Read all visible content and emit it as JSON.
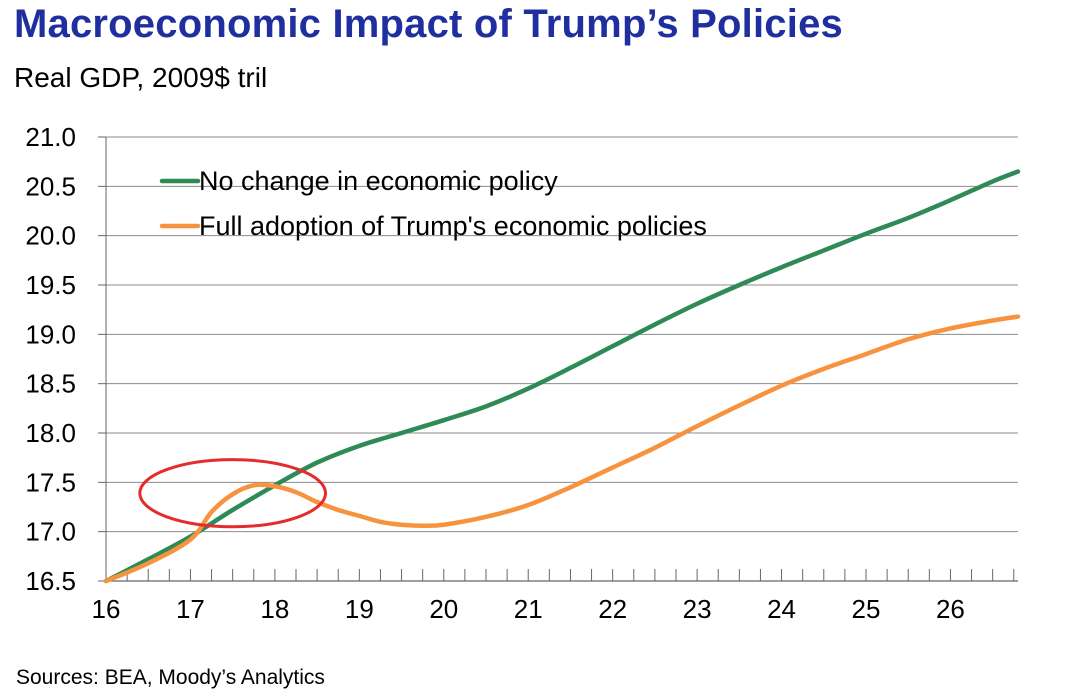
{
  "header": {
    "title": "Macroeconomic Impact of Trump’s Policies",
    "subtitle": "Real GDP, 2009$ tril"
  },
  "footer": {
    "source": "Sources: BEA, Moody’s Analytics"
  },
  "chart_data": {
    "type": "line",
    "title": "Macroeconomic Impact of Trump’s Policies",
    "subtitle": "Real GDP, 2009$ tril",
    "xlabel": "",
    "ylabel": "",
    "xlim": [
      16,
      26.8
    ],
    "ylim": [
      16.5,
      21.0
    ],
    "x_ticks": [
      16,
      17,
      18,
      19,
      20,
      21,
      22,
      23,
      24,
      25,
      26
    ],
    "y_ticks": [
      16.5,
      17.0,
      17.5,
      18.0,
      18.5,
      19.0,
      19.5,
      20.0,
      20.5,
      21.0
    ],
    "grid": "horizontal",
    "legend": "top-left",
    "series": [
      {
        "name": "No change in economic policy",
        "color": "#2e8b57",
        "x": [
          16,
          16.5,
          17,
          17.5,
          18,
          18.5,
          19,
          19.5,
          20,
          20.5,
          21,
          21.5,
          22,
          22.5,
          23,
          23.5,
          24,
          24.5,
          25,
          25.5,
          26,
          26.5,
          26.8
        ],
        "values": [
          16.5,
          16.72,
          16.95,
          17.22,
          17.47,
          17.7,
          17.87,
          18.0,
          18.13,
          18.27,
          18.45,
          18.66,
          18.88,
          19.1,
          19.31,
          19.5,
          19.68,
          19.85,
          20.02,
          20.18,
          20.36,
          20.55,
          20.65
        ]
      },
      {
        "name": "Full adoption of Trump's economic policies",
        "color": "#f7933e",
        "x": [
          16,
          16.5,
          17,
          17.25,
          17.5,
          17.75,
          18,
          18.25,
          18.5,
          18.75,
          19,
          19.25,
          19.5,
          19.75,
          20,
          20.5,
          21,
          21.5,
          22,
          22.5,
          23,
          23.5,
          24,
          24.5,
          25,
          25.5,
          26,
          26.5,
          26.8
        ],
        "values": [
          16.5,
          16.68,
          16.92,
          17.2,
          17.38,
          17.47,
          17.46,
          17.4,
          17.3,
          17.22,
          17.16,
          17.1,
          17.07,
          17.06,
          17.07,
          17.15,
          17.27,
          17.45,
          17.65,
          17.85,
          18.07,
          18.28,
          18.48,
          18.65,
          18.8,
          18.95,
          19.06,
          19.14,
          19.18
        ]
      }
    ],
    "annotations": [
      {
        "type": "ellipse",
        "color": "#e52b2b",
        "x_range": [
          16.4,
          18.6
        ],
        "y_range": [
          17.05,
          17.73
        ]
      }
    ]
  }
}
